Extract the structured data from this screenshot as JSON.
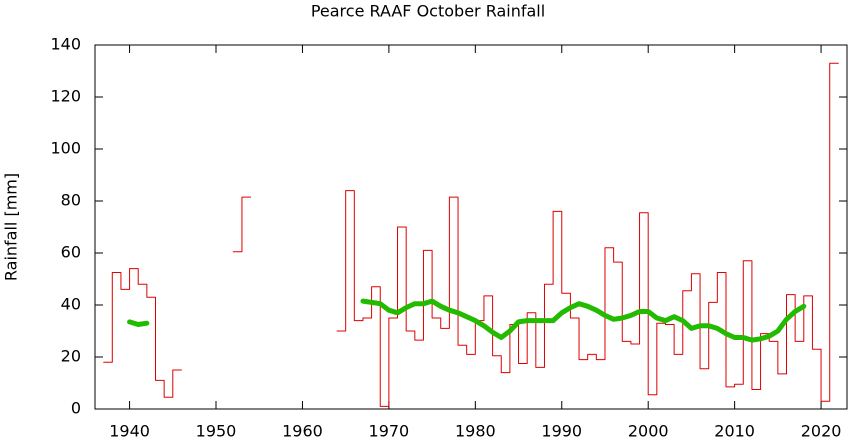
{
  "chart_data": {
    "type": "line",
    "title": "Pearce RAAF October Rainfall",
    "y_label": "Rainfall [mm]",
    "xlim": [
      1936,
      2023
    ],
    "xticks": [
      1940,
      1950,
      1960,
      1970,
      1980,
      1990,
      2000,
      2010,
      2020
    ],
    "ylim": [
      0,
      140
    ],
    "yticks": [
      0,
      20,
      40,
      60,
      80,
      100,
      120,
      140
    ],
    "grid": false,
    "series": [
      {
        "color": "#dd0000",
        "step": true,
        "width": 1,
        "x": [
          1937,
          1938,
          1939,
          1940,
          1941,
          1942,
          1943,
          1944,
          1945,
          1946,
          1947,
          1948,
          1949,
          1950,
          1951,
          1952,
          1953,
          1954,
          1955,
          1956,
          1957,
          1958,
          1959,
          1960,
          1961,
          1962,
          1963,
          1964,
          1965,
          1966,
          1967,
          1968,
          1969,
          1970,
          1971,
          1972,
          1973,
          1974,
          1975,
          1976,
          1977,
          1978,
          1979,
          1980,
          1981,
          1982,
          1983,
          1984,
          1985,
          1986,
          1987,
          1988,
          1989,
          1990,
          1991,
          1992,
          1993,
          1994,
          1995,
          1996,
          1997,
          1998,
          1999,
          2000,
          2001,
          2002,
          2003,
          2004,
          2005,
          2006,
          2007,
          2008,
          2009,
          2010,
          2011,
          2012,
          2013,
          2014,
          2015,
          2016,
          2017,
          2018,
          2019,
          2020,
          2021
        ],
        "values": [
          18,
          52.5,
          46,
          54,
          48,
          43,
          11,
          4.5,
          15,
          null,
          null,
          null,
          null,
          null,
          null,
          60.5,
          81.5,
          null,
          null,
          null,
          null,
          null,
          null,
          null,
          null,
          null,
          null,
          30,
          84,
          34,
          35,
          47,
          1,
          35,
          70,
          30,
          26.5,
          61,
          35,
          31,
          81.5,
          24.5,
          21,
          34,
          43.5,
          20.5,
          14,
          32.5,
          17.5,
          37,
          16,
          48,
          76,
          44.5,
          35,
          19,
          21,
          19,
          62,
          56.5,
          26,
          25,
          75.5,
          5.5,
          33,
          32.5,
          21,
          45.5,
          52,
          15.5,
          41,
          52.5,
          8.5,
          9.5,
          57,
          7.5,
          29,
          26,
          13.5,
          44,
          26,
          43.5,
          23,
          3,
          133
        ]
      },
      {
        "color": "#22bb00",
        "step": false,
        "width": 5,
        "x": [
          1940,
          1941,
          1942,
          1943,
          1967,
          1968,
          1969,
          1970,
          1971,
          1972,
          1973,
          1974,
          1975,
          1976,
          1977,
          1978,
          1979,
          1980,
          1981,
          1982,
          1983,
          1984,
          1985,
          1986,
          1987,
          1988,
          1989,
          1990,
          1991,
          1992,
          1993,
          1994,
          1995,
          1996,
          1997,
          1998,
          1999,
          2000,
          2001,
          2002,
          2003,
          2004,
          2005,
          2006,
          2007,
          2008,
          2009,
          2010,
          2011,
          2012,
          2013,
          2014,
          2015,
          2016,
          2017,
          2018
        ],
        "values": [
          33.5,
          32.5,
          33,
          null,
          41.5,
          41,
          40.5,
          38,
          37,
          39,
          40.5,
          40.5,
          41.5,
          39.5,
          38,
          37,
          35.5,
          34,
          32,
          29.5,
          27.5,
          30,
          33.5,
          34,
          34,
          34,
          34,
          37,
          39,
          40.5,
          39.5,
          38,
          36,
          34.5,
          35,
          36,
          37.5,
          37.5,
          35,
          34,
          35.5,
          34,
          31,
          32,
          32,
          31,
          29,
          27.5,
          27.5,
          26.5,
          27,
          28,
          30,
          34.5,
          37.5,
          39.5
        ]
      }
    ]
  }
}
